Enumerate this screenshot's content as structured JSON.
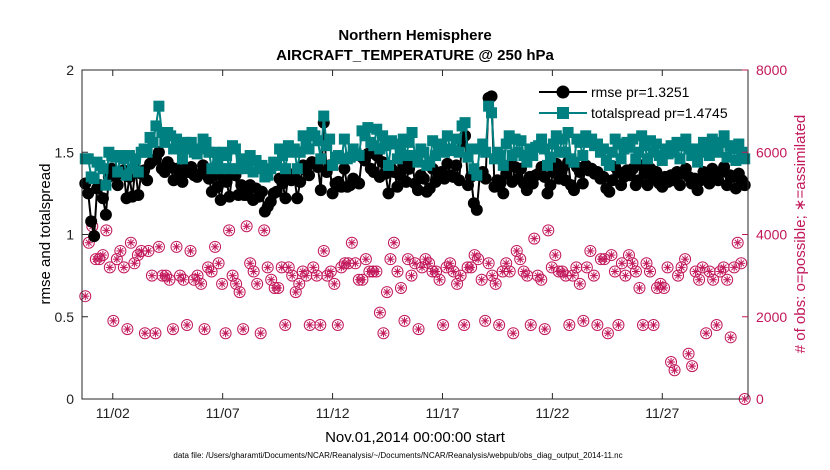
{
  "chart_data": {
    "type": "line",
    "title": "Northern Hemisphere",
    "subtitle": "AIRCRAFT_TEMPERATURE @ 250 hPa",
    "xlabel": "Nov.01,2014 00:00:00 start",
    "ylabel": "rmse and totalspread",
    "y2label": "# of obs: o=possible; ∗=assimilated",
    "footnote": "data file: /Users/gharamti/Documents/NCAR/Reanalysis/~/Documents/NCAR/Reanalysis/webpub/obs_diag_output_2014-11.nc",
    "xlim": [
      0.6,
      30.9
    ],
    "ylim": [
      0,
      2
    ],
    "y2lim": [
      0,
      8000
    ],
    "xticks": [
      {
        "value": 2,
        "label": "11/02"
      },
      {
        "value": 7,
        "label": "11/07"
      },
      {
        "value": 12,
        "label": "11/12"
      },
      {
        "value": 17,
        "label": "11/17"
      },
      {
        "value": 22,
        "label": "11/22"
      },
      {
        "value": 27,
        "label": "11/27"
      }
    ],
    "yticks": [
      {
        "value": 0,
        "label": "0"
      },
      {
        "value": 0.5,
        "label": "0.5"
      },
      {
        "value": 1,
        "label": "1"
      },
      {
        "value": 1.5,
        "label": "1.5"
      },
      {
        "value": 2,
        "label": "2"
      }
    ],
    "y2ticks": [
      {
        "value": 0,
        "label": "0"
      },
      {
        "value": 2000,
        "label": "2000"
      },
      {
        "value": 4000,
        "label": "4000"
      },
      {
        "value": 6000,
        "label": "6000"
      },
      {
        "value": 8000,
        "label": "8000"
      }
    ],
    "legend_position": "top-right",
    "series": [
      {
        "name": "rmse pr=1.3251",
        "color": "#000000",
        "axis": "left",
        "values": [
          1.31,
          1.25,
          1.08,
          0.99,
          1.28,
          1.3,
          1.22,
          1.12,
          1.35,
          1.4,
          1.36,
          1.3,
          1.37,
          1.39,
          1.22,
          1.35,
          1.23,
          1.4,
          1.24,
          1.37,
          1.39,
          1.33,
          1.43,
          1.45,
          1.46,
          1.5,
          1.4,
          1.38,
          1.44,
          1.41,
          1.33,
          1.4,
          1.36,
          1.32,
          1.4,
          1.38,
          1.41,
          1.36,
          1.35,
          1.37,
          1.42,
          1.4,
          1.34,
          1.26,
          1.36,
          1.29,
          1.21,
          1.34,
          1.32,
          1.23,
          1.38,
          1.36,
          1.24,
          1.3,
          1.24,
          1.24,
          1.3,
          1.21,
          1.28,
          1.23,
          1.26,
          1.14,
          1.17,
          1.2,
          1.25,
          1.26,
          1.34,
          1.31,
          1.22,
          1.37,
          1.33,
          1.35,
          1.22,
          1.32,
          1.42,
          1.39,
          1.36,
          1.44,
          1.43,
          1.41,
          1.27,
          1.68,
          1.38,
          1.42,
          1.25,
          1.31,
          1.32,
          1.29,
          1.4,
          1.29,
          1.3,
          1.34,
          1.32,
          1.31,
          1.47,
          1.45,
          1.49,
          1.4,
          1.38,
          1.48,
          1.35,
          1.44,
          1.37,
          1.25,
          1.4,
          1.38,
          1.29,
          1.36,
          1.42,
          1.32,
          1.4,
          1.45,
          1.31,
          1.27,
          1.36,
          1.34,
          1.26,
          1.28,
          1.4,
          1.32,
          1.35,
          1.38,
          1.34,
          1.43,
          1.36,
          1.35,
          1.42,
          1.33,
          1.56,
          1.6,
          1.3,
          1.35,
          1.19,
          1.15,
          1.36,
          1.38,
          1.34,
          1.83,
          1.84,
          1.29,
          1.33,
          1.31,
          1.25,
          1.37,
          1.42,
          1.32,
          1.41,
          1.34,
          1.4,
          1.31,
          1.27,
          1.35,
          1.31,
          1.36,
          1.37,
          1.41,
          1.35,
          1.25,
          1.3,
          1.38,
          1.43,
          1.34,
          1.4,
          1.33,
          1.44,
          1.3,
          1.27,
          1.41,
          1.38,
          1.31,
          1.42,
          1.39,
          1.4,
          1.37,
          1.38,
          1.34,
          1.35,
          1.28,
          1.26,
          1.33,
          1.41,
          1.38,
          1.3,
          1.35,
          1.39,
          1.36,
          1.4,
          1.3,
          1.33,
          1.42,
          1.37,
          1.3,
          1.4,
          1.34,
          1.38,
          1.31,
          1.29,
          1.35,
          1.32,
          1.36,
          1.33,
          1.38,
          1.3,
          1.37,
          1.4,
          1.35,
          1.31,
          1.34,
          1.27,
          1.33,
          1.38,
          1.35,
          1.31,
          1.4,
          1.36,
          1.33,
          1.38,
          1.41,
          1.3,
          1.36,
          1.35,
          1.28,
          1.37,
          1.33,
          1.3
        ]
      },
      {
        "name": "totalspread pr=1.4745",
        "color": "#008080",
        "axis": "left",
        "values": [
          1.46,
          1.46,
          1.35,
          1.34,
          1.44,
          1.42,
          1.4,
          1.3,
          1.5,
          1.48,
          1.47,
          1.38,
          1.48,
          1.46,
          1.36,
          1.48,
          1.4,
          1.46,
          1.38,
          1.5,
          1.52,
          1.5,
          1.59,
          1.56,
          1.66,
          1.78,
          1.62,
          1.56,
          1.62,
          1.6,
          1.52,
          1.58,
          1.52,
          1.46,
          1.56,
          1.52,
          1.56,
          1.5,
          1.49,
          1.52,
          1.58,
          1.56,
          1.5,
          1.4,
          1.5,
          1.45,
          1.4,
          1.5,
          1.48,
          1.4,
          1.54,
          1.52,
          1.4,
          1.46,
          1.4,
          1.42,
          1.48,
          1.38,
          1.45,
          1.4,
          1.42,
          1.35,
          1.36,
          1.4,
          1.44,
          1.42,
          1.52,
          1.48,
          1.4,
          1.54,
          1.5,
          1.52,
          1.4,
          1.5,
          1.6,
          1.56,
          1.52,
          1.62,
          1.6,
          1.57,
          1.46,
          1.72,
          1.54,
          1.58,
          1.42,
          1.47,
          1.48,
          1.46,
          1.58,
          1.46,
          1.47,
          1.52,
          1.49,
          1.48,
          1.63,
          1.6,
          1.65,
          1.56,
          1.54,
          1.64,
          1.52,
          1.6,
          1.54,
          1.42,
          1.57,
          1.55,
          1.46,
          1.52,
          1.58,
          1.48,
          1.56,
          1.62,
          1.48,
          1.44,
          1.52,
          1.5,
          1.42,
          1.44,
          1.57,
          1.48,
          1.52,
          1.55,
          1.5,
          1.6,
          1.52,
          1.51,
          1.58,
          1.5,
          1.66,
          1.68,
          1.47,
          1.52,
          1.4,
          1.36,
          1.52,
          1.55,
          1.5,
          1.78,
          1.74,
          1.46,
          1.5,
          1.48,
          1.42,
          1.55,
          1.6,
          1.48,
          1.58,
          1.5,
          1.57,
          1.48,
          1.44,
          1.52,
          1.48,
          1.53,
          1.54,
          1.58,
          1.52,
          1.42,
          1.47,
          1.55,
          1.6,
          1.5,
          1.58,
          1.5,
          1.62,
          1.46,
          1.44,
          1.58,
          1.56,
          1.48,
          1.6,
          1.56,
          1.58,
          1.54,
          1.55,
          1.5,
          1.52,
          1.45,
          1.42,
          1.5,
          1.58,
          1.55,
          1.46,
          1.52,
          1.56,
          1.53,
          1.58,
          1.46,
          1.5,
          1.6,
          1.54,
          1.46,
          1.57,
          1.5,
          1.55,
          1.48,
          1.45,
          1.52,
          1.49,
          1.54,
          1.5,
          1.56,
          1.46,
          1.54,
          1.58,
          1.52,
          1.48,
          1.52,
          1.44,
          1.5,
          1.56,
          1.52,
          1.48,
          1.58,
          1.53,
          1.5,
          1.56,
          1.6,
          1.47,
          1.54,
          1.52,
          1.45,
          1.55,
          1.5,
          1.46
        ]
      }
    ],
    "obs_series": [
      {
        "name": "possible",
        "marker": "circle",
        "axis": "right",
        "color": "#c2185b",
        "values": [
          2500,
          3800,
          4200,
          3400,
          3400,
          3500,
          4100,
          3200,
          1900,
          3400,
          3600,
          3200,
          1700,
          3800,
          3300,
          3500,
          3600,
          1600,
          3600,
          3000,
          1600,
          3700,
          3000,
          3000,
          2900,
          1700,
          3700,
          3000,
          2900,
          1800,
          3600,
          2900,
          3000,
          2800,
          1700,
          3200,
          3100,
          3700,
          3300,
          2800,
          1600,
          4100,
          3000,
          2800,
          2600,
          1700,
          4200,
          3300,
          3100,
          2800,
          1600,
          4100,
          3200,
          2900,
          2700,
          2700,
          3200,
          1800,
          3200,
          3000,
          2600,
          2800,
          3100,
          3000,
          1800,
          3200,
          3000,
          1800,
          3600,
          3000,
          3100,
          2800,
          1800,
          3200,
          3300,
          3300,
          3800,
          3300,
          2900,
          2900,
          3400,
          3100,
          3100,
          3100,
          2100,
          1600,
          2600,
          3400,
          3800,
          3100,
          2700,
          1900,
          3400,
          3000,
          3300,
          1700,
          3200,
          3400,
          3300,
          3100,
          3100,
          2900,
          1800,
          3200,
          3300,
          3100,
          2800,
          3000,
          1800,
          3200,
          3200,
          3500,
          3400,
          2900,
          1900,
          3300,
          3000,
          2800,
          1800,
          3100,
          3300,
          3100,
          1600,
          3600,
          3400,
          3100,
          3000,
          1800,
          3900,
          3000,
          2900,
          1700,
          4100,
          3200,
          3500,
          3100,
          3100,
          3000,
          1800,
          3000,
          3200,
          2800,
          1900,
          3200,
          3600,
          3000,
          1800,
          3400,
          3400,
          1600,
          3500,
          3100,
          1800,
          3300,
          3000,
          3500,
          3300,
          3100,
          2700,
          1800,
          3300,
          3100,
          1800,
          2700,
          2800,
          2700,
          3200,
          900,
          700,
          3000,
          3200,
          3400,
          1100,
          800,
          3100,
          2900,
          3200,
          1600,
          3100,
          2900,
          1800,
          3100,
          3200,
          2900,
          1500,
          3200,
          3800,
          3300,
          0
        ]
      }
    ]
  }
}
